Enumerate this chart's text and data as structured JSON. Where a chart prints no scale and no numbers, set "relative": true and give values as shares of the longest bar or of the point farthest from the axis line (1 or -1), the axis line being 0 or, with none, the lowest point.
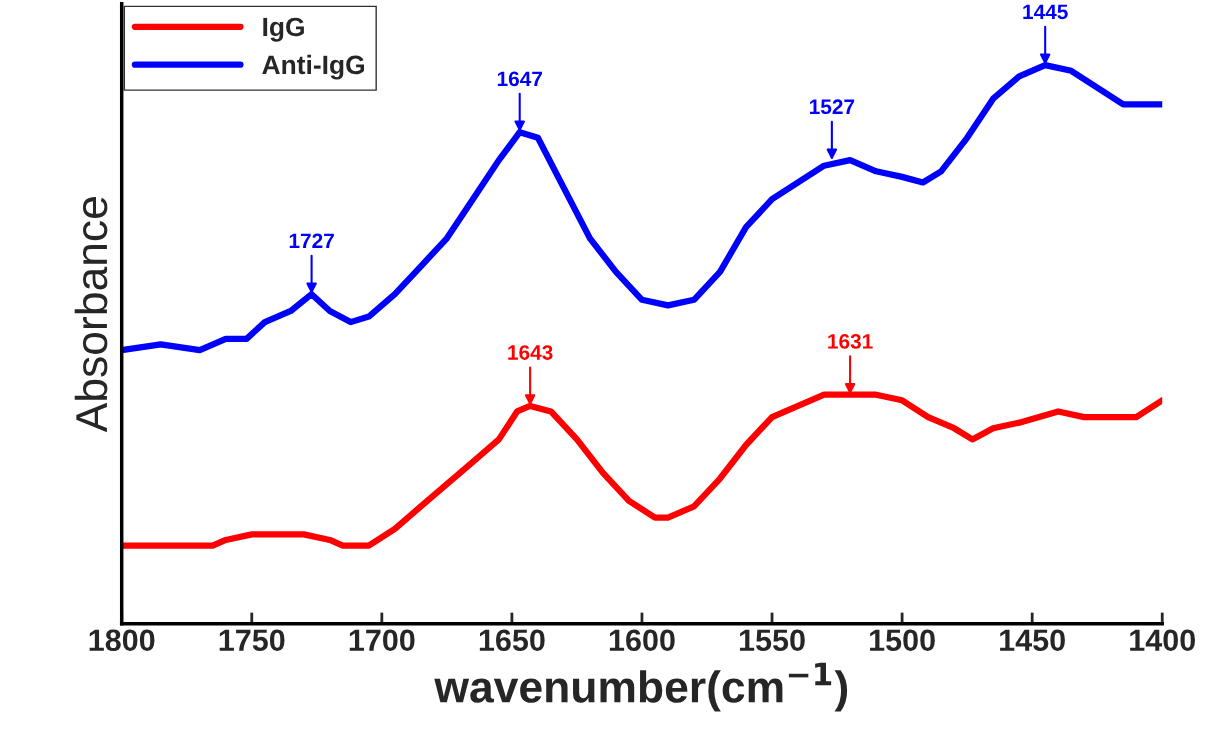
{
  "chart_data": {
    "type": "line",
    "relative": true,
    "xlabel": "wavenumber(cm$^{−1}$)",
    "ylabel": "Absorbance",
    "xlim": [
      1800,
      1400
    ],
    "xticks": [
      1800,
      1750,
      1700,
      1650,
      1600,
      1550,
      1500,
      1450,
      1400
    ],
    "legend": "top left",
    "grid": false,
    "marker": "none",
    "line_style": "solid",
    "series": [
      {
        "name": "IgG",
        "color": "#ff0000",
        "x": [
          1800,
          1780,
          1765,
          1760,
          1750,
          1740,
          1730,
          1720,
          1715,
          1705,
          1695,
          1685,
          1675,
          1665,
          1655,
          1648,
          1643,
          1635,
          1625,
          1615,
          1605,
          1595,
          1590,
          1580,
          1570,
          1560,
          1550,
          1540,
          1530,
          1520,
          1510,
          1500,
          1490,
          1480,
          1473,
          1465,
          1455,
          1440,
          1430,
          1420,
          1410,
          1400
        ],
        "values": [
          0.14,
          0.14,
          0.14,
          0.15,
          0.16,
          0.16,
          0.16,
          0.15,
          0.14,
          0.14,
          0.17,
          0.21,
          0.25,
          0.29,
          0.33,
          0.38,
          0.39,
          0.38,
          0.33,
          0.27,
          0.22,
          0.19,
          0.19,
          0.21,
          0.26,
          0.32,
          0.37,
          0.39,
          0.41,
          0.41,
          0.41,
          0.4,
          0.37,
          0.35,
          0.33,
          0.35,
          0.36,
          0.38,
          0.37,
          0.37,
          0.37,
          0.4
        ]
      },
      {
        "name": "Anti-IgG",
        "color": "#0000ff",
        "x": [
          1800,
          1785,
          1770,
          1760,
          1752,
          1745,
          1735,
          1727,
          1720,
          1712,
          1705,
          1695,
          1685,
          1675,
          1665,
          1655,
          1647,
          1640,
          1630,
          1620,
          1610,
          1600,
          1590,
          1580,
          1570,
          1560,
          1550,
          1540,
          1530,
          1520,
          1510,
          1500,
          1492,
          1485,
          1475,
          1465,
          1455,
          1445,
          1435,
          1425,
          1415,
          1408,
          1400
        ],
        "values": [
          0.49,
          0.5,
          0.49,
          0.51,
          0.51,
          0.54,
          0.56,
          0.59,
          0.56,
          0.54,
          0.55,
          0.59,
          0.64,
          0.69,
          0.76,
          0.83,
          0.88,
          0.87,
          0.78,
          0.69,
          0.63,
          0.58,
          0.57,
          0.58,
          0.63,
          0.71,
          0.76,
          0.79,
          0.82,
          0.83,
          0.81,
          0.8,
          0.79,
          0.81,
          0.87,
          0.94,
          0.98,
          1.0,
          0.99,
          0.96,
          0.93,
          0.93,
          0.93
        ]
      }
    ],
    "annotations": [
      {
        "text": "1727",
        "x": 1727,
        "y": 0.59
      },
      {
        "text": "1647",
        "x": 1647,
        "y": 0.88
      },
      {
        "text": "1527",
        "x": 1527,
        "y": 0.83
      },
      {
        "text": "1445",
        "x": 1445,
        "y": 1.0
      },
      {
        "text": "1643",
        "x": 1643,
        "y": 0.39
      },
      {
        "text": "1631",
        "x": 1520,
        "y": 0.41
      }
    ]
  }
}
